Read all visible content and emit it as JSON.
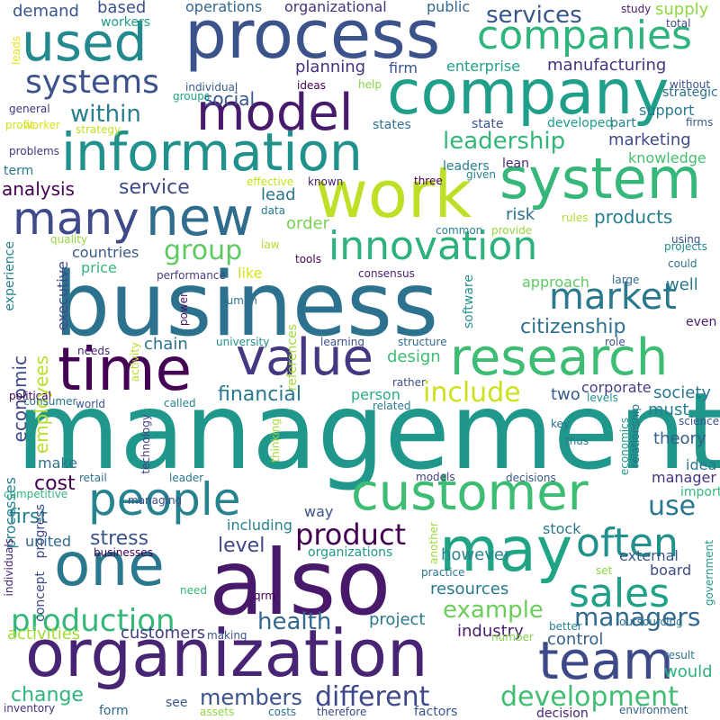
{
  "words": [
    {
      "text": "management",
      "color": "#1f988b"
    },
    {
      "text": "business",
      "color": "#2c728e"
    },
    {
      "text": "also",
      "color": "#48186a"
    },
    {
      "text": "organization",
      "color": "#482475"
    },
    {
      "text": "process",
      "color": "#3b528b"
    },
    {
      "text": "company",
      "color": "#1f9e89"
    },
    {
      "text": "information",
      "color": "#21918c"
    },
    {
      "text": "system",
      "color": "#35b779"
    },
    {
      "text": "work",
      "color": "#bddf26"
    },
    {
      "text": "customer",
      "color": "#3dbc74"
    },
    {
      "text": "may",
      "color": "#20a486"
    },
    {
      "text": "one",
      "color": "#2a788e"
    },
    {
      "text": "innovation",
      "color": "#2db27d"
    },
    {
      "text": "research",
      "color": "#3dbc74"
    },
    {
      "text": "value",
      "color": "#453781"
    },
    {
      "text": "time",
      "color": "#440154"
    },
    {
      "text": "people",
      "color": "#26828e"
    },
    {
      "text": "new",
      "color": "#2f6c8e"
    },
    {
      "text": "used",
      "color": "#23898e"
    },
    {
      "text": "model",
      "color": "#481a6c"
    },
    {
      "text": "team",
      "color": "#3e4989"
    },
    {
      "text": "companies",
      "color": "#2fb47c"
    },
    {
      "text": "many",
      "color": "#3e4a89"
    },
    {
      "text": "sales",
      "color": "#1fa088"
    },
    {
      "text": "often",
      "color": "#21918c"
    },
    {
      "text": "production",
      "color": "#35b779"
    },
    {
      "text": "market",
      "color": "#2a788e"
    },
    {
      "text": "development",
      "color": "#40bd72"
    },
    {
      "text": "systems",
      "color": "#3b528b"
    },
    {
      "text": "include",
      "color": "#cde11d"
    },
    {
      "text": "product",
      "color": "#440154"
    },
    {
      "text": "different",
      "color": "#3e4989"
    },
    {
      "text": "managers",
      "color": "#31688e"
    },
    {
      "text": "health",
      "color": "#31688e"
    },
    {
      "text": "use",
      "color": "#2a788e"
    },
    {
      "text": "leadership",
      "color": "#34b679"
    },
    {
      "text": "group",
      "color": "#5ec962"
    },
    {
      "text": "example",
      "color": "#6ccd5a"
    },
    {
      "text": "economic",
      "color": "#3e4a89"
    },
    {
      "text": "employees",
      "color": "#b8de29"
    },
    {
      "text": "citizenship",
      "color": "#2c728e"
    },
    {
      "text": "members",
      "color": "#3b528b"
    },
    {
      "text": "financial",
      "color": "#2a788e"
    },
    {
      "text": "services",
      "color": "#39568c"
    },
    {
      "text": "products",
      "color": "#277f8e"
    },
    {
      "text": "within",
      "color": "#277f8e"
    },
    {
      "text": "change",
      "color": "#2fb47c"
    },
    {
      "text": "stress",
      "color": "#3b528b"
    },
    {
      "text": "service",
      "color": "#3e4a89"
    },
    {
      "text": "analysis",
      "color": "#440154"
    },
    {
      "text": "level",
      "color": "#3f4788"
    },
    {
      "text": "cost",
      "color": "#440154"
    },
    {
      "text": "first",
      "color": "#26828e"
    },
    {
      "text": "activities",
      "color": "#a5db36"
    },
    {
      "text": "customers",
      "color": "#433e85"
    },
    {
      "text": "control",
      "color": "#34608d"
    },
    {
      "text": "would",
      "color": "#2db27d"
    },
    {
      "text": "resources",
      "color": "#2a788e"
    },
    {
      "text": "however",
      "color": "#26828e"
    },
    {
      "text": "marketing",
      "color": "#3e4a89"
    },
    {
      "text": "social",
      "color": "#39568c"
    },
    {
      "text": "planning",
      "color": "#46327e"
    },
    {
      "text": "manufacturing",
      "color": "#46327e"
    },
    {
      "text": "design",
      "color": "#3dbc74"
    },
    {
      "text": "two",
      "color": "#365c8d"
    },
    {
      "text": "chain",
      "color": "#2c728e"
    },
    {
      "text": "must",
      "color": "#277f8e"
    },
    {
      "text": "theory",
      "color": "#355f8d"
    },
    {
      "text": "society",
      "color": "#2a768e"
    },
    {
      "text": "well",
      "color": "#2a788e"
    },
    {
      "text": "lead",
      "color": "#2c728e"
    },
    {
      "text": "order",
      "color": "#7ad151"
    },
    {
      "text": "risk",
      "color": "#2c728e"
    },
    {
      "text": "industry",
      "color": "#481b6d"
    },
    {
      "text": "project",
      "color": "#2a788e"
    },
    {
      "text": "supply",
      "color": "#90d743"
    },
    {
      "text": "demand",
      "color": "#39568c"
    },
    {
      "text": "based",
      "color": "#3b528b"
    },
    {
      "text": "operations",
      "color": "#32658e"
    },
    {
      "text": "organizational",
      "color": "#46327e"
    },
    {
      "text": "public",
      "color": "#31688e"
    },
    {
      "text": "enterprise",
      "color": "#1fa088"
    },
    {
      "text": "firm",
      "color": "#3b528b"
    },
    {
      "text": "knowledge",
      "color": "#44bf70"
    },
    {
      "text": "support",
      "color": "#2a788e"
    },
    {
      "text": "approach",
      "color": "#5ec962"
    },
    {
      "text": "price",
      "color": "#34b679"
    },
    {
      "text": "countries",
      "color": "#38598c"
    },
    {
      "text": "make",
      "color": "#2c728e"
    },
    {
      "text": "executive",
      "color": "#3e4989"
    },
    {
      "text": "person",
      "color": "#27ad81"
    },
    {
      "text": "corporate",
      "color": "#433e85"
    },
    {
      "text": "manager",
      "color": "#46327e"
    },
    {
      "text": "idea",
      "color": "#2a788e"
    },
    {
      "text": "including",
      "color": "#26828e"
    },
    {
      "text": "way",
      "color": "#3b528b"
    },
    {
      "text": "stock",
      "color": "#2a788e"
    },
    {
      "text": "external",
      "color": "#39568c"
    },
    {
      "text": "board",
      "color": "#3e4989"
    },
    {
      "text": "united",
      "color": "#31688e"
    },
    {
      "text": "organizations",
      "color": "#1f988b"
    },
    {
      "text": "see",
      "color": "#38598c"
    },
    {
      "text": "form",
      "color": "#31688e"
    },
    {
      "text": "decision",
      "color": "#482475"
    },
    {
      "text": "factors",
      "color": "#39568c"
    },
    {
      "text": "even",
      "color": "#481f70"
    },
    {
      "text": "processes",
      "color": "#26828e"
    },
    {
      "text": "software",
      "color": "#21918c"
    },
    {
      "text": "experience",
      "color": "#26828e"
    },
    {
      "text": "term",
      "color": "#2a788e"
    },
    {
      "text": "references",
      "color": "#a0da39"
    },
    {
      "text": "important",
      "color": "#35b779"
    },
    {
      "text": "progress",
      "color": "#3e4989"
    },
    {
      "text": "concept",
      "color": "#3e4a89"
    },
    {
      "text": "leaders",
      "color": "#26828e"
    },
    {
      "text": "lean",
      "color": "#482878"
    },
    {
      "text": "state",
      "color": "#39568c"
    },
    {
      "text": "states",
      "color": "#2c728e"
    },
    {
      "text": "developed",
      "color": "#1f9e89"
    },
    {
      "text": "part",
      "color": "#26828e"
    },
    {
      "text": "strategic",
      "color": "#2c728e"
    },
    {
      "text": "firms",
      "color": "#365c8d"
    },
    {
      "text": "without",
      "color": "#3b528b"
    },
    {
      "text": "total",
      "color": "#3e4a89"
    },
    {
      "text": "study",
      "color": "#481a6c"
    },
    {
      "text": "workers",
      "color": "#1fa088"
    },
    {
      "text": "ideas",
      "color": "#440154"
    },
    {
      "text": "help",
      "color": "#86d549"
    },
    {
      "text": "individual",
      "color": "#38598c"
    },
    {
      "text": "groups",
      "color": "#20a486"
    },
    {
      "text": "general",
      "color": "#46327e"
    },
    {
      "text": "profit",
      "color": "#d2e21b"
    },
    {
      "text": "worker",
      "color": "#dde318"
    },
    {
      "text": "strategy",
      "color": "#c2df23"
    },
    {
      "text": "problems",
      "color": "#46327e"
    },
    {
      "text": "effective",
      "color": "#c8e020"
    },
    {
      "text": "known",
      "color": "#482071"
    },
    {
      "text": "three",
      "color": "#440154"
    },
    {
      "text": "given",
      "color": "#26828e"
    },
    {
      "text": "data",
      "color": "#2a788e"
    },
    {
      "text": "law",
      "color": "#b5de2b"
    },
    {
      "text": "common",
      "color": "#26828e"
    },
    {
      "text": "provide",
      "color": "#95d840"
    },
    {
      "text": "rules",
      "color": "#b0dd2f"
    },
    {
      "text": "using",
      "color": "#3b528b"
    },
    {
      "text": "projects",
      "color": "#23898e"
    },
    {
      "text": "could",
      "color": "#2c728e"
    },
    {
      "text": "large",
      "color": "#31688e"
    },
    {
      "text": "quality",
      "color": "#95d840"
    },
    {
      "text": "tools",
      "color": "#440154"
    },
    {
      "text": "performance",
      "color": "#433e85"
    },
    {
      "text": "like",
      "color": "#d8e219"
    },
    {
      "text": "consensus",
      "color": "#482173"
    },
    {
      "text": "power",
      "color": "#471365"
    },
    {
      "text": "human",
      "color": "#2c728e"
    },
    {
      "text": "university",
      "color": "#21918c"
    },
    {
      "text": "learning",
      "color": "#3b528b"
    },
    {
      "text": "structure",
      "color": "#31688e"
    },
    {
      "text": "role",
      "color": "#3b528b"
    },
    {
      "text": "needs",
      "color": "#482475"
    },
    {
      "text": "activity",
      "color": "#b8de29"
    },
    {
      "text": "rather",
      "color": "#3e4a89"
    },
    {
      "text": "political",
      "color": "#440154"
    },
    {
      "text": "consumer",
      "color": "#2c728e"
    },
    {
      "text": "world",
      "color": "#3b528b"
    },
    {
      "text": "called",
      "color": "#26828e"
    },
    {
      "text": "related",
      "color": "#2a788e"
    },
    {
      "text": "levels",
      "color": "#21918c"
    },
    {
      "text": "science",
      "color": "#3b528b"
    },
    {
      "text": "technology",
      "color": "#433e85"
    },
    {
      "text": "thinking",
      "color": "#a5db36"
    },
    {
      "text": "relationship",
      "color": "#2c728e"
    },
    {
      "text": "economics",
      "color": "#1f988b"
    },
    {
      "text": "key",
      "color": "#2c728e"
    },
    {
      "text": "thus",
      "color": "#2a788e"
    },
    {
      "text": "retail",
      "color": "#2c728e"
    },
    {
      "text": "leader",
      "color": "#2a788e"
    },
    {
      "text": "models",
      "color": "#433e85"
    },
    {
      "text": "decisions",
      "color": "#38598c"
    },
    {
      "text": "competitive",
      "color": "#2fb47c"
    },
    {
      "text": "managing",
      "color": "#3e4a89"
    },
    {
      "text": "businesses",
      "color": "#440154"
    },
    {
      "text": "another",
      "color": "#a0da39"
    },
    {
      "text": "individuals",
      "color": "#482475"
    },
    {
      "text": "practice",
      "color": "#2a788e"
    },
    {
      "text": "set",
      "color": "#90d743"
    },
    {
      "text": "need",
      "color": "#35b779"
    },
    {
      "text": "qrm",
      "color": "#440154"
    },
    {
      "text": "making",
      "color": "#3b528b"
    },
    {
      "text": "number",
      "color": "#86d549"
    },
    {
      "text": "better",
      "color": "#26828e"
    },
    {
      "text": "outsourcing",
      "color": "#2c728e"
    },
    {
      "text": "government",
      "color": "#1f988b"
    },
    {
      "text": "result",
      "color": "#2c728e"
    },
    {
      "text": "environment",
      "color": "#34608d"
    },
    {
      "text": "inventory",
      "color": "#46327e"
    },
    {
      "text": "assets",
      "color": "#90d743"
    },
    {
      "text": "costs",
      "color": "#2c728e"
    },
    {
      "text": "therefore",
      "color": "#3e4a89"
    },
    {
      "text": "leads",
      "color": "#e7e419"
    }
  ]
}
